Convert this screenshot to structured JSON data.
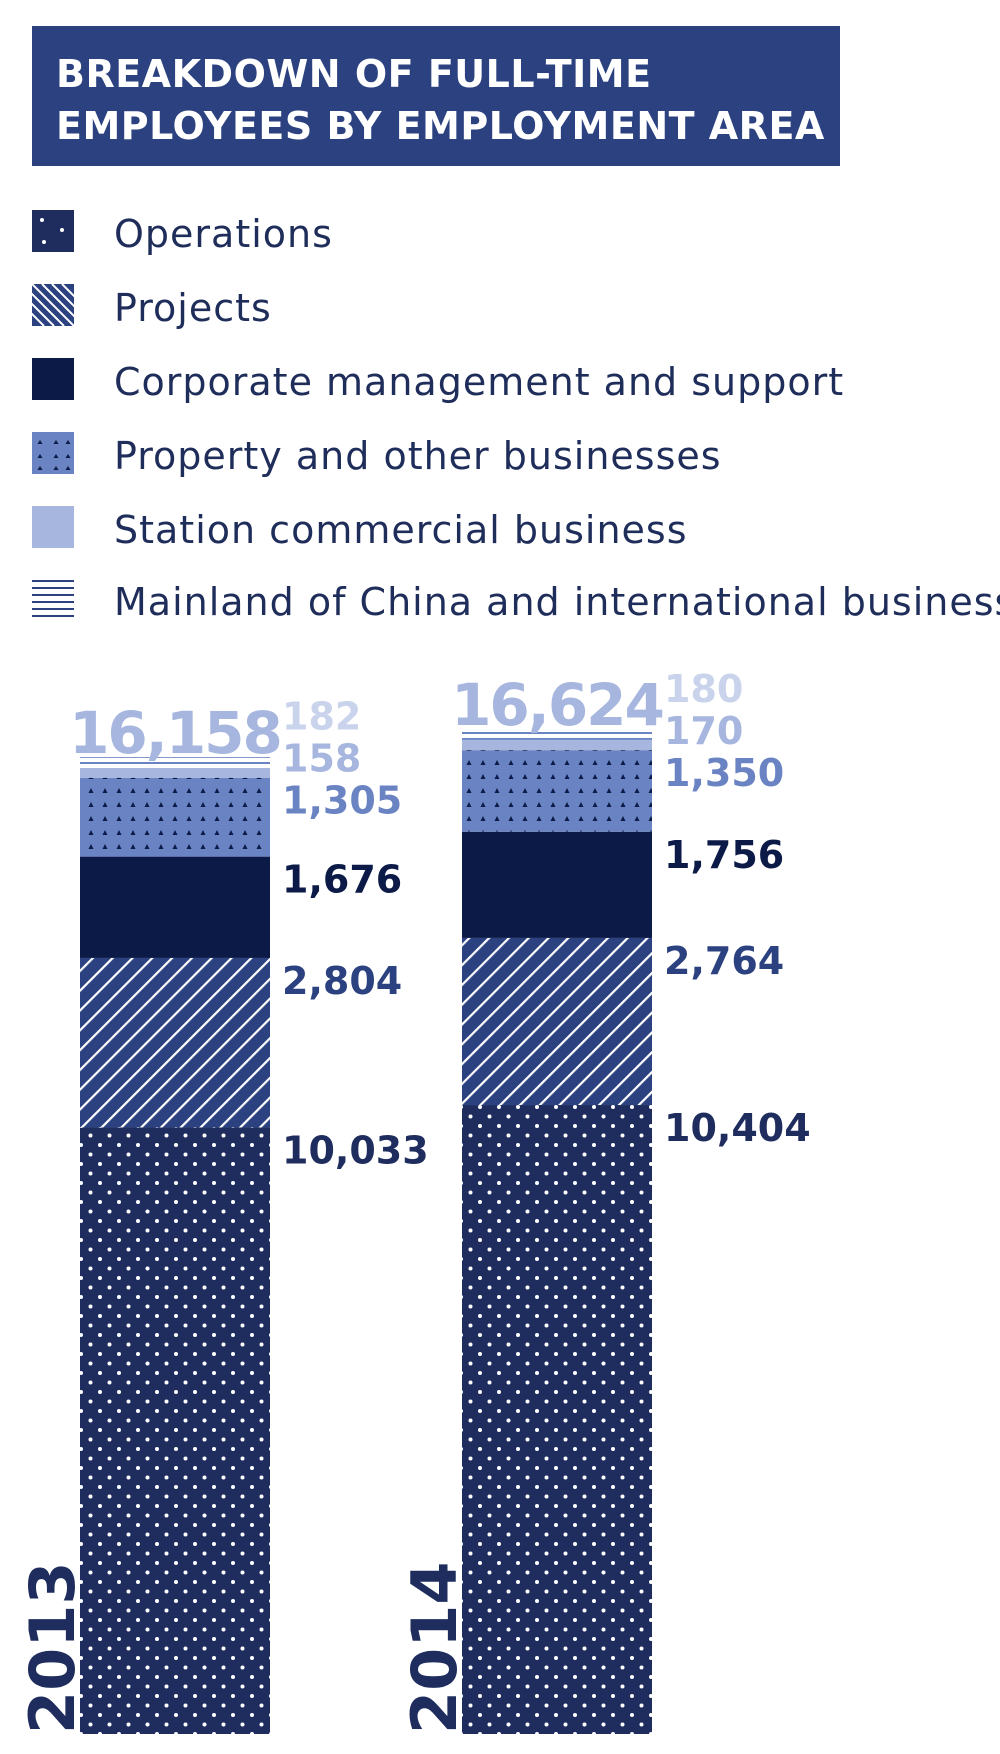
{
  "title": {
    "line1": "BREAKDOWN OF FULL-TIME",
    "line2": "EMPLOYEES BY EMPLOYMENT AREA"
  },
  "legend": [
    {
      "label": "Operations",
      "pattern": "dots"
    },
    {
      "label": "Projects",
      "pattern": "diagonal"
    },
    {
      "label": "Corporate management and support",
      "pattern": "solid-dark"
    },
    {
      "label": "Property and other businesses",
      "pattern": "triangles"
    },
    {
      "label": "Station commercial business",
      "pattern": "solid-light"
    },
    {
      "label": "Mainland of China and international business",
      "pattern": "horizontal"
    }
  ],
  "colors": {
    "header": "#2b4180",
    "operations": "#1f2d5e",
    "projects": "#2b4180",
    "corporate": "#0c1a48",
    "property": "#6a83c2",
    "station": "#a6b6de",
    "mainland": "#c9d3ec",
    "total": "#a6b6de"
  },
  "chart_data": {
    "type": "bar",
    "stacked": true,
    "categories": [
      "2013",
      "2014"
    ],
    "totals": [
      "16,158",
      "16,624"
    ],
    "series": [
      {
        "name": "Operations",
        "values": [
          10033,
          10404
        ],
        "labels": [
          "10,033",
          "10,404"
        ],
        "color": "#1f2d5e",
        "label_color": "#1f2d5e",
        "pattern": "dots"
      },
      {
        "name": "Projects",
        "values": [
          2804,
          2764
        ],
        "labels": [
          "2,804",
          "2,764"
        ],
        "color": "#2b4180",
        "label_color": "#2b4180",
        "pattern": "diagonal"
      },
      {
        "name": "Corporate management and support",
        "values": [
          1676,
          1756
        ],
        "labels": [
          "1,676",
          "1,756"
        ],
        "color": "#0c1a48",
        "label_color": "#0c1a48",
        "pattern": "solid"
      },
      {
        "name": "Property and other businesses",
        "values": [
          1305,
          1350
        ],
        "labels": [
          "1,305",
          "1,350"
        ],
        "color": "#6a83c2",
        "label_color": "#6a83c2",
        "pattern": "triangles"
      },
      {
        "name": "Station commercial business",
        "values": [
          158,
          170
        ],
        "labels": [
          "158",
          "170"
        ],
        "color": "#a6b6de",
        "label_color": "#a6b6de",
        "pattern": "solid"
      },
      {
        "name": "Mainland of China and international business",
        "values": [
          182,
          180
        ],
        "labels": [
          "182",
          "180"
        ],
        "color": "#c9d3ec",
        "label_color": "#c9d3ec",
        "pattern": "horizontal"
      }
    ]
  }
}
